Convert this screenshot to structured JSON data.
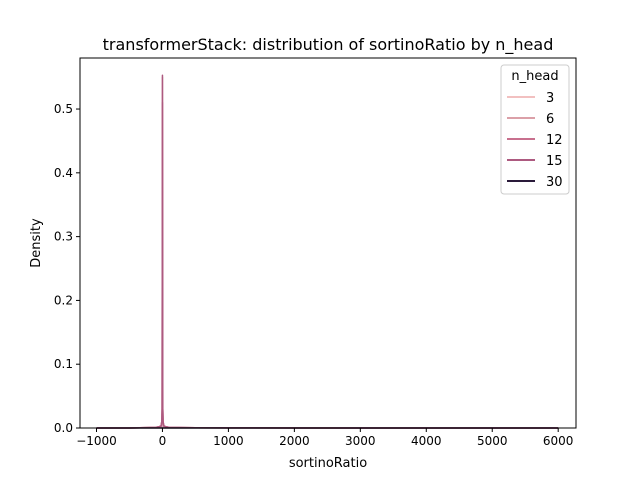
{
  "chart_data": {
    "type": "line",
    "title": "transformerStack: distribution of sortinoRatio by n_head",
    "xlabel": "sortinoRatio",
    "ylabel": "Density",
    "xlim": [
      -1250,
      6270
    ],
    "ylim": [
      0,
      0.58
    ],
    "xticks": [
      -1000,
      0,
      1000,
      2000,
      3000,
      4000,
      5000,
      6000
    ],
    "xtick_labels": [
      "−1000",
      "0",
      "1000",
      "2000",
      "3000",
      "4000",
      "5000",
      "6000"
    ],
    "yticks": [
      0.0,
      0.1,
      0.2,
      0.3,
      0.4,
      0.5
    ],
    "ytick_labels": [
      "0.0",
      "0.1",
      "0.2",
      "0.3",
      "0.4",
      "0.5"
    ],
    "grid": false,
    "legend": {
      "title": "n_head",
      "placement": "top-right"
    },
    "series": [
      {
        "name": "3",
        "color": "#f2c0c0",
        "x": [
          -1000,
          -500,
          -100,
          -50,
          -20,
          -10,
          -5,
          0,
          5,
          10,
          20,
          50,
          100,
          500,
          1000,
          2000,
          3000,
          4000,
          5000,
          6000
        ],
        "y": [
          0,
          0.0002,
          0.001,
          0.002,
          0.004,
          0.008,
          0.02,
          0.15,
          0.02,
          0.008,
          0.004,
          0.002,
          0.001,
          0.0004,
          0.0003,
          0.0003,
          0.0001,
          5e-05,
          2e-05,
          0
        ]
      },
      {
        "name": "6",
        "color": "#dba0a8",
        "x": [
          -1000,
          -500,
          -100,
          -50,
          -20,
          -10,
          -5,
          0,
          5,
          10,
          20,
          50,
          100,
          500,
          1000,
          2000,
          3000,
          4000,
          5000,
          6000
        ],
        "y": [
          0,
          0.0001,
          0.001,
          0.002,
          0.004,
          0.01,
          0.03,
          0.55,
          0.03,
          0.01,
          0.004,
          0.002,
          0.001,
          0.0003,
          0.0002,
          0.0002,
          0.0001,
          5e-05,
          2e-05,
          0
        ]
      },
      {
        "name": "12",
        "color": "#c8708e",
        "x": [
          -1000,
          -500,
          -100,
          -50,
          -20,
          -10,
          -5,
          0,
          5,
          10,
          20,
          50,
          100,
          500,
          1000,
          2000,
          3000,
          4000,
          5000,
          6000
        ],
        "y": [
          0,
          0.0001,
          0.001,
          0.002,
          0.003,
          0.01,
          0.03,
          0.51,
          0.03,
          0.01,
          0.003,
          0.002,
          0.001,
          0.0003,
          0.0002,
          0.0001,
          5e-05,
          2e-05,
          1e-05,
          0
        ]
      },
      {
        "name": "15",
        "color": "#ad5a80",
        "x": [
          -1000,
          -500,
          -100,
          -50,
          -20,
          -10,
          -5,
          0,
          5,
          10,
          20,
          50,
          100,
          500,
          1000,
          2000,
          3000,
          4000,
          5000,
          6000
        ],
        "y": [
          0,
          0.0001,
          0.001,
          0.002,
          0.003,
          0.01,
          0.03,
          0.553,
          0.03,
          0.01,
          0.003,
          0.002,
          0.001,
          0.0003,
          0.0002,
          0.0001,
          5e-05,
          2e-05,
          1e-05,
          0
        ]
      },
      {
        "name": "30",
        "color": "#2a1a3a",
        "x": [
          -1000,
          -500,
          -100,
          -50,
          -20,
          -10,
          -5,
          0,
          5,
          10,
          20,
          50,
          100,
          500,
          1000,
          2000,
          3000,
          4000,
          5000,
          6000
        ],
        "y": [
          0,
          0,
          0,
          0,
          0,
          0,
          0,
          0,
          0,
          0,
          0,
          0,
          0,
          0,
          0,
          0,
          0,
          0,
          0,
          0
        ]
      }
    ]
  }
}
